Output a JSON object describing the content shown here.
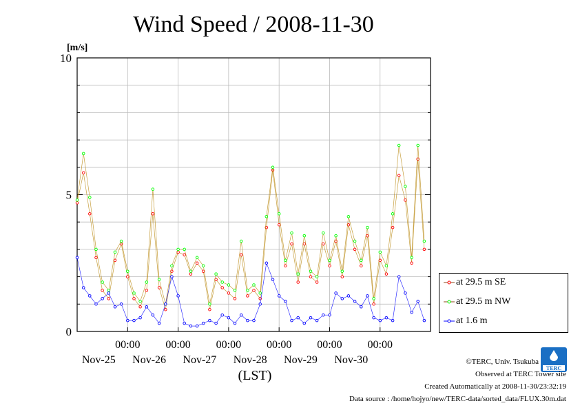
{
  "chart_data": {
    "type": "line",
    "title": "Wind Speed / 2008-11-30",
    "ylabel": "[m/s]",
    "xlabel": "(LST)",
    "ylim": [
      0,
      10
    ],
    "yticks": [
      "0",
      "5",
      "10"
    ],
    "xlim": [
      "2008-11-24 00:00",
      "2008-11-30 23:59"
    ],
    "xticks": [
      {
        "time": "00:00",
        "date": "Nov-25"
      },
      {
        "time": "00:00",
        "date": "Nov-26"
      },
      {
        "time": "00:00",
        "date": "Nov-27"
      },
      {
        "time": "00:00",
        "date": "Nov-28"
      },
      {
        "time": "00:00",
        "date": "Nov-29"
      },
      {
        "time": "00:00",
        "date": "Nov-30"
      }
    ],
    "grid": true,
    "legend_position": "right",
    "series": [
      {
        "name": "at 29.5 m SE",
        "color": "#ff0000",
        "x": [
          "2008-11-24 00:00",
          "2008-11-24 03:00",
          "2008-11-24 06:00",
          "2008-11-24 09:00",
          "2008-11-24 12:00",
          "2008-11-24 15:00",
          "2008-11-24 18:00",
          "2008-11-24 21:00",
          "2008-11-25 00:00",
          "2008-11-25 03:00",
          "2008-11-25 06:00",
          "2008-11-25 09:00",
          "2008-11-25 12:00",
          "2008-11-25 15:00",
          "2008-11-25 18:00",
          "2008-11-25 21:00",
          "2008-11-26 00:00",
          "2008-11-26 03:00",
          "2008-11-26 06:00",
          "2008-11-26 09:00",
          "2008-11-26 12:00",
          "2008-11-26 15:00",
          "2008-11-26 18:00",
          "2008-11-26 21:00",
          "2008-11-27 00:00",
          "2008-11-27 03:00",
          "2008-11-27 06:00",
          "2008-11-27 09:00",
          "2008-11-27 12:00",
          "2008-11-27 15:00",
          "2008-11-27 18:00",
          "2008-11-27 21:00",
          "2008-11-28 00:00",
          "2008-11-28 03:00",
          "2008-11-28 06:00",
          "2008-11-28 09:00",
          "2008-11-28 12:00",
          "2008-11-28 15:00",
          "2008-11-28 18:00",
          "2008-11-28 21:00",
          "2008-11-29 00:00",
          "2008-11-29 03:00",
          "2008-11-29 06:00",
          "2008-11-29 09:00",
          "2008-11-29 12:00",
          "2008-11-29 15:00",
          "2008-11-29 18:00",
          "2008-11-29 21:00",
          "2008-11-30 00:00",
          "2008-11-30 03:00",
          "2008-11-30 06:00",
          "2008-11-30 09:00",
          "2008-11-30 12:00",
          "2008-11-30 15:00",
          "2008-11-30 18:00",
          "2008-11-30 21:00"
        ],
        "values": [
          4.7,
          5.8,
          4.3,
          2.7,
          1.5,
          1.2,
          2.6,
          3.2,
          2.0,
          1.2,
          0.9,
          1.5,
          4.3,
          1.6,
          0.8,
          2.2,
          2.9,
          2.8,
          2.1,
          2.5,
          2.2,
          0.8,
          1.9,
          1.6,
          1.4,
          1.2,
          2.8,
          1.3,
          1.5,
          1.2,
          3.8,
          5.9,
          3.9,
          2.4,
          3.2,
          1.8,
          3.2,
          2.0,
          1.8,
          3.2,
          2.4,
          3.3,
          2.0,
          3.9,
          3.0,
          2.4,
          3.5,
          1.0,
          2.6,
          2.1,
          3.8,
          5.7,
          4.8,
          2.5,
          6.3,
          3.0
        ]
      },
      {
        "name": "at 29.5 m NW",
        "color": "#00ff00",
        "x": [
          "2008-11-24 00:00",
          "2008-11-24 03:00",
          "2008-11-24 06:00",
          "2008-11-24 09:00",
          "2008-11-24 12:00",
          "2008-11-24 15:00",
          "2008-11-24 18:00",
          "2008-11-24 21:00",
          "2008-11-25 00:00",
          "2008-11-25 03:00",
          "2008-11-25 06:00",
          "2008-11-25 09:00",
          "2008-11-25 12:00",
          "2008-11-25 15:00",
          "2008-11-25 18:00",
          "2008-11-25 21:00",
          "2008-11-26 00:00",
          "2008-11-26 03:00",
          "2008-11-26 06:00",
          "2008-11-26 09:00",
          "2008-11-26 12:00",
          "2008-11-26 15:00",
          "2008-11-26 18:00",
          "2008-11-26 21:00",
          "2008-11-27 00:00",
          "2008-11-27 03:00",
          "2008-11-27 06:00",
          "2008-11-27 09:00",
          "2008-11-27 12:00",
          "2008-11-27 15:00",
          "2008-11-27 18:00",
          "2008-11-27 21:00",
          "2008-11-28 00:00",
          "2008-11-28 03:00",
          "2008-11-28 06:00",
          "2008-11-28 09:00",
          "2008-11-28 12:00",
          "2008-11-28 15:00",
          "2008-11-28 18:00",
          "2008-11-28 21:00",
          "2008-11-29 00:00",
          "2008-11-29 03:00",
          "2008-11-29 06:00",
          "2008-11-29 09:00",
          "2008-11-29 12:00",
          "2008-11-29 15:00",
          "2008-11-29 18:00",
          "2008-11-29 21:00",
          "2008-11-30 00:00",
          "2008-11-30 03:00",
          "2008-11-30 06:00",
          "2008-11-30 09:00",
          "2008-11-30 12:00",
          "2008-11-30 15:00",
          "2008-11-30 18:00",
          "2008-11-30 21:00"
        ],
        "values": [
          4.8,
          6.5,
          4.9,
          3.0,
          1.8,
          1.5,
          2.9,
          3.3,
          2.2,
          1.4,
          1.1,
          1.8,
          5.2,
          1.9,
          1.0,
          2.4,
          3.0,
          3.0,
          2.2,
          2.7,
          2.4,
          1.0,
          2.1,
          1.8,
          1.7,
          1.5,
          3.3,
          1.5,
          1.7,
          1.4,
          4.2,
          6.0,
          4.3,
          2.6,
          3.6,
          2.1,
          3.5,
          2.2,
          2.0,
          3.6,
          2.6,
          3.5,
          2.2,
          4.2,
          3.3,
          2.6,
          3.8,
          1.2,
          2.9,
          2.4,
          4.3,
          6.8,
          5.3,
          2.7,
          6.8,
          3.3
        ]
      },
      {
        "name": "at 1.6 m",
        "color": "#0000ff",
        "x": [
          "2008-11-24 00:00",
          "2008-11-24 03:00",
          "2008-11-24 06:00",
          "2008-11-24 09:00",
          "2008-11-24 12:00",
          "2008-11-24 15:00",
          "2008-11-24 18:00",
          "2008-11-24 21:00",
          "2008-11-25 00:00",
          "2008-11-25 03:00",
          "2008-11-25 06:00",
          "2008-11-25 09:00",
          "2008-11-25 12:00",
          "2008-11-25 15:00",
          "2008-11-25 18:00",
          "2008-11-25 21:00",
          "2008-11-26 00:00",
          "2008-11-26 03:00",
          "2008-11-26 06:00",
          "2008-11-26 09:00",
          "2008-11-26 12:00",
          "2008-11-26 15:00",
          "2008-11-26 18:00",
          "2008-11-26 21:00",
          "2008-11-27 00:00",
          "2008-11-27 03:00",
          "2008-11-27 06:00",
          "2008-11-27 09:00",
          "2008-11-27 12:00",
          "2008-11-27 15:00",
          "2008-11-27 18:00",
          "2008-11-27 21:00",
          "2008-11-28 00:00",
          "2008-11-28 03:00",
          "2008-11-28 06:00",
          "2008-11-28 09:00",
          "2008-11-28 12:00",
          "2008-11-28 15:00",
          "2008-11-28 18:00",
          "2008-11-28 21:00",
          "2008-11-29 00:00",
          "2008-11-29 03:00",
          "2008-11-29 06:00",
          "2008-11-29 09:00",
          "2008-11-29 12:00",
          "2008-11-29 15:00",
          "2008-11-29 18:00",
          "2008-11-29 21:00",
          "2008-11-30 00:00",
          "2008-11-30 03:00",
          "2008-11-30 06:00",
          "2008-11-30 09:00",
          "2008-11-30 12:00",
          "2008-11-30 15:00",
          "2008-11-30 18:00",
          "2008-11-30 21:00"
        ],
        "values": [
          2.7,
          1.6,
          1.3,
          1.0,
          1.2,
          1.4,
          0.9,
          1.0,
          0.4,
          0.4,
          0.5,
          0.9,
          0.6,
          0.3,
          1.0,
          2.0,
          1.3,
          0.3,
          0.2,
          0.2,
          0.3,
          0.4,
          0.3,
          0.6,
          0.5,
          0.3,
          0.6,
          0.4,
          0.4,
          1.0,
          2.5,
          1.9,
          1.3,
          1.1,
          0.4,
          0.5,
          0.3,
          0.5,
          0.4,
          0.6,
          0.6,
          1.4,
          1.2,
          1.3,
          1.1,
          0.9,
          1.3,
          0.5,
          0.4,
          0.5,
          0.4,
          2.0,
          1.4,
          0.7,
          1.1,
          0.4
        ]
      }
    ]
  },
  "footer": {
    "copyright": "©TERC, Univ. Tsukuba",
    "observed": "Observed at TERC Tower site",
    "created": "Created Automatically at 2008-11-30/23:32:19",
    "source": "Data source : /home/hojyo/new/TERC-data/sorted_data/FLUX.30m.dat"
  },
  "logo_text": "TERC"
}
